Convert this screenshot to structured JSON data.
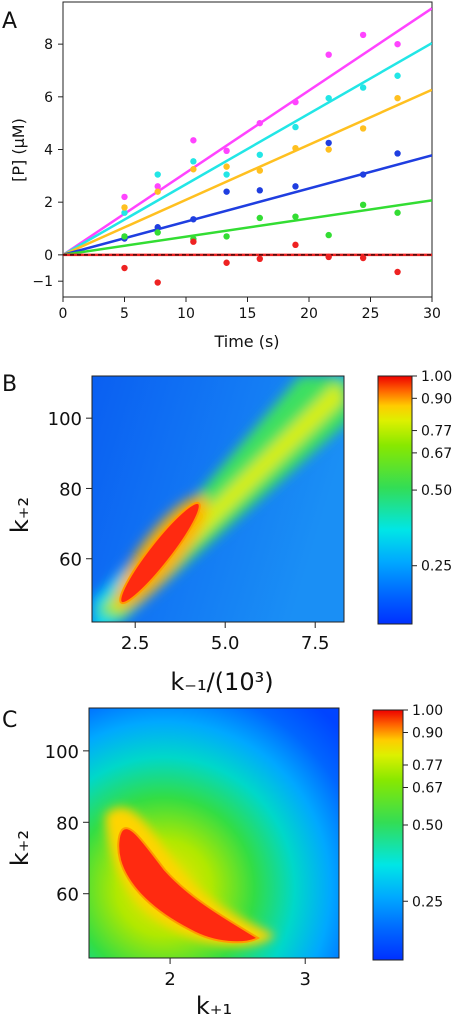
{
  "chart_data": [
    {
      "panel": "A",
      "type": "scatter",
      "xlabel": "Time (s)",
      "ylabel": "[P] (μM)",
      "xlim": [
        0,
        30
      ],
      "ylim": [
        -1.6,
        9.6
      ],
      "xticks": [
        "0",
        "5",
        "10",
        "15",
        "20",
        "25",
        "30"
      ],
      "yticks": [
        "0",
        "2",
        "4",
        "6",
        "8"
      ],
      "grid": false,
      "legend": "none",
      "series": [
        {
          "color": "#ff44ff",
          "slope": 0.312,
          "x": [
            5,
            7.7,
            10.6,
            13.3,
            16,
            18.9,
            21.6,
            24.4,
            27.2
          ],
          "y": [
            2.2,
            2.6,
            4.35,
            3.95,
            5.0,
            5.8,
            7.6,
            8.35,
            8.0
          ]
        },
        {
          "color": "#22e6e6",
          "slope": 0.268,
          "x": [
            5,
            7.7,
            10.6,
            13.3,
            16,
            18.9,
            21.6,
            24.4,
            27.2
          ],
          "y": [
            1.6,
            3.05,
            3.55,
            3.05,
            3.8,
            4.85,
            5.95,
            6.35,
            6.8
          ]
        },
        {
          "color": "#ffc020",
          "slope": 0.209,
          "x": [
            5,
            7.7,
            10.6,
            13.3,
            16,
            18.9,
            21.6,
            24.4,
            27.2
          ],
          "y": [
            1.8,
            2.4,
            3.25,
            3.35,
            3.2,
            4.05,
            4.0,
            4.8,
            5.95
          ]
        },
        {
          "color": "#1f3ee0",
          "slope": 0.126,
          "x": [
            5,
            7.7,
            10.6,
            13.3,
            16,
            18.9,
            21.6,
            24.4,
            27.2
          ],
          "y": [
            0.62,
            1.05,
            1.35,
            2.4,
            2.45,
            2.6,
            4.25,
            3.05,
            3.85
          ]
        },
        {
          "color": "#33dd33",
          "slope": 0.069,
          "x": [
            5,
            7.7,
            10.6,
            13.3,
            16,
            18.9,
            21.6,
            24.4,
            27.2
          ],
          "y": [
            0.7,
            0.85,
            0.6,
            0.7,
            1.4,
            1.45,
            0.75,
            1.9,
            1.6
          ]
        },
        {
          "color": "#ee2222",
          "slope": 0.0,
          "x": [
            5,
            7.7,
            10.6,
            13.3,
            16,
            18.9,
            21.6,
            24.4,
            27.2
          ],
          "y": [
            -0.5,
            -1.05,
            0.5,
            -0.3,
            -0.15,
            0.38,
            -0.08,
            -0.12,
            -0.65
          ]
        }
      ],
      "reference_line": {
        "y": 0,
        "style": "black dashed"
      }
    },
    {
      "panel": "B",
      "type": "heatmap",
      "xlabel": "k₋₁/(10³)",
      "ylabel": "k₊₂",
      "xlim": [
        1.3,
        8.3
      ],
      "ylim": [
        42,
        112
      ],
      "xticks": [
        "2.5",
        "5.0",
        "7.5"
      ],
      "yticks": [
        "60",
        "80",
        "100"
      ],
      "colorbar_ticks": [
        "1.00",
        "0.90",
        "0.77",
        "0.67",
        "0.50",
        "0.25"
      ],
      "peak": {
        "x": 3.0,
        "y": 58
      }
    },
    {
      "panel": "C",
      "type": "heatmap",
      "xlabel": "k₊₁",
      "ylabel": "k₊₂",
      "xlim": [
        1.4,
        3.25
      ],
      "ylim": [
        42,
        112
      ],
      "xticks": [
        "2",
        "3"
      ],
      "yticks": [
        "60",
        "80",
        "100"
      ],
      "colorbar_ticks": [
        "1.00",
        "0.90",
        "0.77",
        "0.67",
        "0.50",
        "0.25"
      ],
      "peak": {
        "x": 2.0,
        "y": 60
      }
    }
  ],
  "panel_labels": {
    "a": "A",
    "b": "B",
    "c": "C"
  }
}
